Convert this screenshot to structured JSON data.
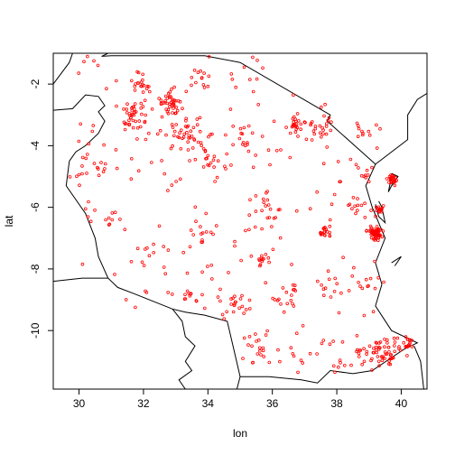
{
  "colors": {
    "background": "#ffffff",
    "points": "#ff0000",
    "boundaries": "#000000",
    "axes": "#000000"
  },
  "chart_data": {
    "type": "scatter",
    "title": "",
    "xlabel": "lon",
    "ylabel": "lat",
    "xlim": [
      29.2,
      40.8
    ],
    "ylim": [
      -11.9,
      -1.0
    ],
    "xticks": [
      30,
      32,
      34,
      36,
      38,
      40
    ],
    "yticks": [
      -10,
      -8,
      -6,
      -4,
      -2
    ],
    "xtick_labels": [
      "30",
      "32",
      "34",
      "36",
      "38",
      "40"
    ],
    "ytick_labels": [
      "-10",
      "-8",
      "-6",
      "-4",
      "-2"
    ],
    "grid": false,
    "legend": "none",
    "marker": "open-circle",
    "boundaries": [
      [
        [
          29.2,
          -2.0
        ],
        [
          29.7,
          -1.3
        ],
        [
          29.8,
          -1.0
        ]
      ],
      [
        [
          29.2,
          -2.85
        ],
        [
          29.8,
          -2.8
        ],
        [
          30.2,
          -2.35
        ],
        [
          30.6,
          -2.4
        ],
        [
          30.8,
          -2.7
        ],
        [
          30.6,
          -2.9
        ],
        [
          30.8,
          -3.2
        ],
        [
          30.6,
          -3.6
        ],
        [
          30.2,
          -4.0
        ],
        [
          29.9,
          -4.2
        ],
        [
          29.7,
          -4.5
        ]
      ],
      [
        [
          30.9,
          -1.0
        ],
        [
          30.7,
          -1.1
        ],
        [
          31.0,
          -1.08
        ],
        [
          33.9,
          -1.08
        ],
        [
          35.0,
          -1.3
        ],
        [
          37.8,
          -3.0
        ],
        [
          37.7,
          -3.2
        ],
        [
          39.2,
          -4.6
        ],
        [
          38.9,
          -5.3
        ],
        [
          39.1,
          -6.0
        ],
        [
          39.5,
          -7.0
        ],
        [
          39.2,
          -7.8
        ],
        [
          39.4,
          -8.5
        ],
        [
          39.2,
          -9.2
        ],
        [
          39.7,
          -10.0
        ],
        [
          40.5,
          -10.4
        ],
        [
          40.1,
          -10.6
        ],
        [
          39.1,
          -11.3
        ],
        [
          38.5,
          -11.4
        ],
        [
          37.8,
          -11.3
        ],
        [
          37.4,
          -11.7
        ],
        [
          36.9,
          -11.6
        ],
        [
          35.9,
          -11.5
        ],
        [
          35.0,
          -11.5
        ],
        [
          34.8,
          -10.6
        ],
        [
          34.6,
          -9.7
        ],
        [
          33.9,
          -9.5
        ],
        [
          33.3,
          -9.4
        ],
        [
          32.9,
          -9.3
        ],
        [
          31.7,
          -8.8
        ],
        [
          31.2,
          -8.6
        ],
        [
          30.9,
          -8.3
        ],
        [
          30.6,
          -7.6
        ],
        [
          30.5,
          -7.0
        ],
        [
          30.2,
          -6.2
        ],
        [
          29.6,
          -5.3
        ],
        [
          29.7,
          -4.5
        ]
      ],
      [
        [
          29.2,
          -8.4
        ],
        [
          30.1,
          -8.3
        ],
        [
          30.9,
          -8.3
        ]
      ],
      [
        [
          32.9,
          -9.3
        ],
        [
          33.2,
          -9.7
        ],
        [
          33.3,
          -10.2
        ],
        [
          33.6,
          -10.5
        ],
        [
          33.3,
          -11.0
        ],
        [
          33.5,
          -11.3
        ],
        [
          33.1,
          -11.6
        ],
        [
          33.3,
          -11.9
        ]
      ],
      [
        [
          35.0,
          -11.5
        ],
        [
          34.9,
          -11.9
        ]
      ],
      [
        [
          40.4,
          -10.5
        ],
        [
          40.6,
          -11.0
        ],
        [
          40.7,
          -11.9
        ]
      ],
      [
        [
          39.2,
          -4.6
        ],
        [
          40.2,
          -3.8
        ],
        [
          40.2,
          -3.0
        ],
        [
          40.5,
          -2.5
        ],
        [
          40.8,
          -2.3
        ]
      ],
      [
        [
          39.7,
          -4.9
        ],
        [
          39.9,
          -5.0
        ],
        [
          39.7,
          -5.3
        ],
        [
          39.6,
          -5.5
        ],
        [
          39.7,
          -5.0
        ]
      ],
      [
        [
          39.3,
          -5.8
        ],
        [
          39.4,
          -6.0
        ],
        [
          39.5,
          -6.5
        ],
        [
          39.3,
          -6.3
        ],
        [
          39.2,
          -5.9
        ]
      ],
      [
        [
          39.7,
          -7.8
        ],
        [
          40.0,
          -7.6
        ],
        [
          39.8,
          -7.9
        ]
      ]
    ],
    "clusters": [
      {
        "lon": 39.2,
        "lat": -6.85,
        "spread": 0.18,
        "count": 60
      },
      {
        "lon": 39.7,
        "lat": -5.1,
        "spread": 0.13,
        "count": 25
      },
      {
        "lon": 39.35,
        "lat": -6.05,
        "spread": 0.1,
        "count": 14
      },
      {
        "lon": 32.8,
        "lat": -2.6,
        "spread": 0.35,
        "count": 40
      },
      {
        "lon": 31.8,
        "lat": -3.1,
        "spread": 0.4,
        "count": 40
      },
      {
        "lon": 33.4,
        "lat": -3.6,
        "spread": 0.6,
        "count": 45
      },
      {
        "lon": 31.9,
        "lat": -2.0,
        "spread": 0.3,
        "count": 18
      },
      {
        "lon": 33.8,
        "lat": -1.8,
        "spread": 0.35,
        "count": 10
      },
      {
        "lon": 36.8,
        "lat": -3.4,
        "spread": 0.35,
        "count": 28
      },
      {
        "lon": 37.5,
        "lat": -3.4,
        "spread": 0.3,
        "count": 18
      },
      {
        "lon": 38.8,
        "lat": -3.6,
        "spread": 0.3,
        "count": 8
      },
      {
        "lon": 35.7,
        "lat": -6.2,
        "spread": 0.5,
        "count": 18
      },
      {
        "lon": 37.6,
        "lat": -6.8,
        "spread": 0.2,
        "count": 18
      },
      {
        "lon": 38.5,
        "lat": -6.0,
        "spread": 0.35,
        "count": 10
      },
      {
        "lon": 39.6,
        "lat": -10.7,
        "spread": 0.4,
        "count": 45
      },
      {
        "lon": 40.2,
        "lat": -10.4,
        "spread": 0.15,
        "count": 15
      },
      {
        "lon": 38.9,
        "lat": -10.8,
        "spread": 0.4,
        "count": 15
      },
      {
        "lon": 35.7,
        "lat": -7.7,
        "spread": 0.15,
        "count": 12
      },
      {
        "lon": 34.8,
        "lat": -9.2,
        "spread": 0.45,
        "count": 18
      },
      {
        "lon": 33.5,
        "lat": -8.9,
        "spread": 0.25,
        "count": 10
      },
      {
        "lon": 35.6,
        "lat": -10.6,
        "spread": 0.45,
        "count": 14
      },
      {
        "lon": 37.5,
        "lat": -10.8,
        "spread": 0.6,
        "count": 12
      },
      {
        "lon": 30.3,
        "lat": -4.7,
        "spread": 0.4,
        "count": 14
      },
      {
        "lon": 31.1,
        "lat": -6.4,
        "spread": 0.3,
        "count": 8
      },
      {
        "lon": 34.2,
        "lat": -4.6,
        "spread": 0.4,
        "count": 14
      },
      {
        "lon": 34.0,
        "lat": -6.8,
        "spread": 0.45,
        "count": 12
      },
      {
        "lon": 36.5,
        "lat": -8.8,
        "spread": 0.45,
        "count": 12
      },
      {
        "lon": 37.8,
        "lat": -8.6,
        "spread": 0.4,
        "count": 10
      },
      {
        "lon": 32.2,
        "lat": -7.6,
        "spread": 0.5,
        "count": 10
      },
      {
        "lon": 35.1,
        "lat": -3.7,
        "spread": 0.4,
        "count": 12
      },
      {
        "lon": 38.9,
        "lat": -8.5,
        "spread": 0.3,
        "count": 8
      },
      {
        "lon": 38.9,
        "lat": -4.9,
        "spread": 0.2,
        "count": 8
      }
    ],
    "background_points": 260,
    "bbox": {
      "lon": [
        29.9,
        40.3
      ],
      "lat": [
        -11.4,
        -1.1
      ]
    }
  }
}
